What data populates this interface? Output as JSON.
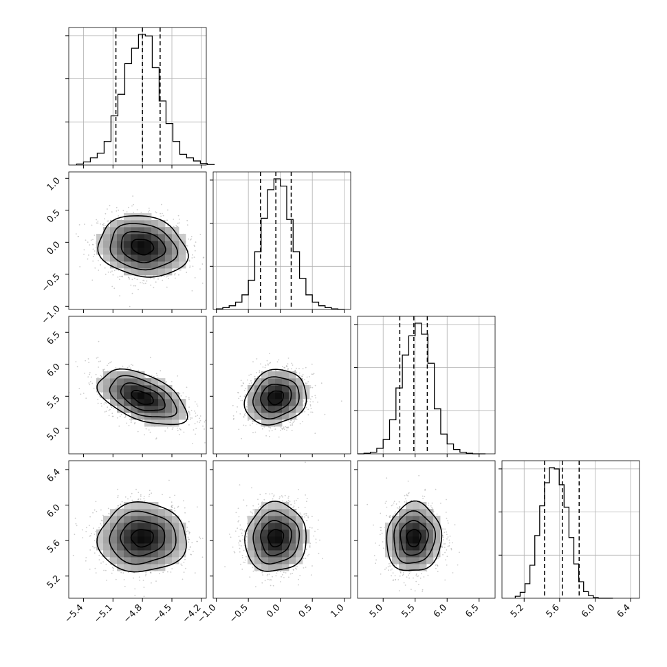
{
  "chart_data": {
    "type": "corner",
    "title": "",
    "n_params": 4,
    "params": [
      {
        "range": [
          -5.55,
          -4.15
        ],
        "ticks": [
          -5.4,
          -5.1,
          -4.8,
          -4.5,
          -4.2
        ],
        "tick_labels": [
          "−5.4",
          "−5.1",
          "−4.8",
          "−4.5",
          "−4.2"
        ],
        "quantiles": [
          -5.07,
          -4.8,
          -4.62
        ],
        "hist_edges_start": -5.47,
        "hist_bin_width": 0.07,
        "hist_counts": [
          2,
          6,
          14,
          23,
          46,
          96,
          138,
          198,
          228,
          255,
          252,
          190,
          125,
          81,
          46,
          21,
          14,
          8,
          3,
          1
        ]
      },
      {
        "range": [
          -1.05,
          1.1
        ],
        "ticks": [
          -1.0,
          -0.5,
          0.0,
          0.5,
          1.0
        ],
        "tick_labels": [
          "−1.0",
          "−0.5",
          "0.0",
          "0.5",
          "1.0"
        ],
        "quantiles": [
          -0.31,
          -0.07,
          0.17
        ],
        "hist_edges_start": -1.0,
        "hist_bin_width": 0.1,
        "hist_counts": [
          1,
          3,
          6,
          12,
          24,
          48,
          95,
          150,
          197,
          215,
          203,
          148,
          95,
          51,
          24,
          12,
          6,
          3,
          1,
          0
        ]
      },
      {
        "range": [
          4.6,
          6.75
        ],
        "ticks": [
          5.0,
          5.5,
          6.0,
          6.5
        ],
        "tick_labels": [
          "5.0",
          "5.5",
          "6.0",
          "6.5"
        ],
        "quantiles": [
          5.26,
          5.48,
          5.69
        ],
        "hist_edges_start": 4.6,
        "hist_bin_width": 0.1,
        "hist_counts": [
          0,
          1,
          3,
          10,
          26,
          62,
          120,
          180,
          215,
          238,
          218,
          165,
          82,
          36,
          18,
          8,
          3,
          1,
          0,
          0
        ]
      },
      {
        "range": [
          4.95,
          6.5
        ],
        "ticks": [
          5.2,
          5.6,
          6.0,
          6.4
        ],
        "tick_labels": [
          "5.2",
          "5.6",
          "6.0",
          "6.4"
        ],
        "quantiles": [
          5.43,
          5.63,
          5.82
        ],
        "hist_edges_start": 5.1,
        "hist_bin_width": 0.055,
        "hist_counts": [
          3,
          9,
          22,
          50,
          95,
          140,
          175,
          198,
          196,
          172,
          138,
          92,
          52,
          25,
          10,
          4,
          1,
          0,
          0,
          0
        ]
      }
    ],
    "correlations": [
      [
        1.0,
        -0.15,
        -0.5,
        0.02
      ],
      [
        -0.15,
        1.0,
        0.15,
        0.05
      ],
      [
        -0.5,
        0.15,
        1.0,
        0.05
      ],
      [
        0.02,
        0.05,
        0.05,
        1.0
      ]
    ],
    "grid": true,
    "quantile_lines": "dashed"
  }
}
